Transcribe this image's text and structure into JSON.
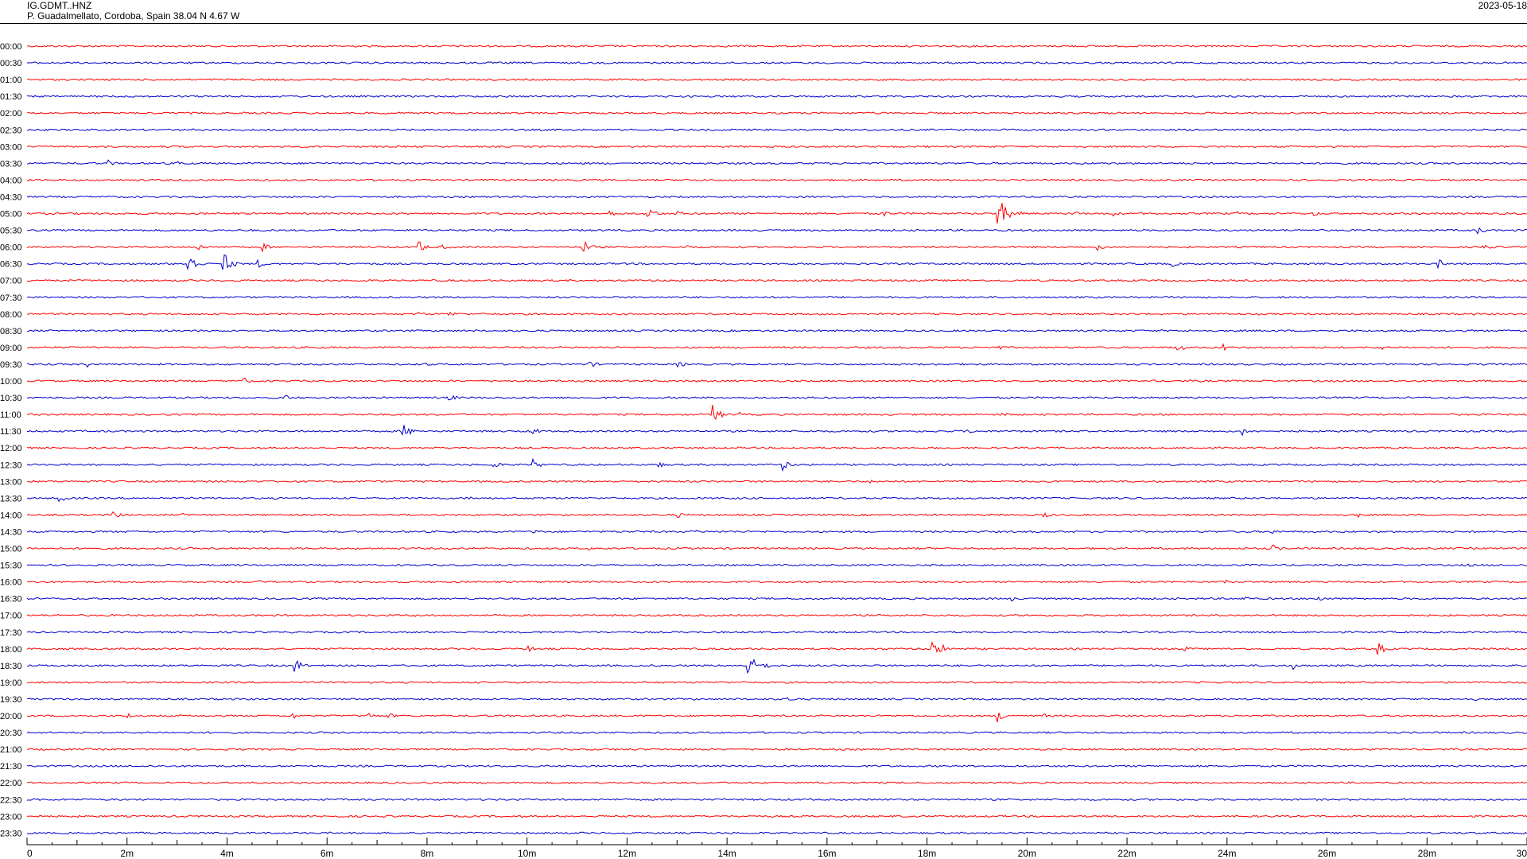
{
  "header": {
    "station_code": "IG.GDMT..HNZ",
    "location": "P. Guadalmellato, Cordoba, Spain  38.04 N 4.67 W",
    "date": "2023-05-18"
  },
  "colors": {
    "trace_a": "#ff0000",
    "trace_b": "#0000cc",
    "axis": "#000000"
  },
  "chart_data": {
    "type": "line",
    "title": "",
    "xlabel": "",
    "ylabel": "",
    "x_unit": "minutes",
    "xlim": [
      0,
      30
    ],
    "x_tick_labels": [
      "0",
      "2m",
      "4m",
      "6m",
      "8m",
      "10m",
      "12m",
      "14m",
      "16m",
      "18m",
      "20m",
      "22m",
      "24m",
      "26m",
      "28m",
      "30"
    ],
    "rows": [
      {
        "label": "00:00",
        "color": "red",
        "events": []
      },
      {
        "label": "00:30",
        "color": "blue",
        "events": []
      },
      {
        "label": "01:00",
        "color": "red",
        "events": []
      },
      {
        "label": "01:30",
        "color": "blue",
        "events": []
      },
      {
        "label": "02:00",
        "color": "red",
        "events": []
      },
      {
        "label": "02:30",
        "color": "blue",
        "events": []
      },
      {
        "label": "03:00",
        "color": "red",
        "events": []
      },
      {
        "label": "03:30",
        "color": "blue",
        "events": [
          [
            1.6,
            5
          ],
          [
            3.0,
            6
          ]
        ]
      },
      {
        "label": "04:00",
        "color": "red",
        "events": []
      },
      {
        "label": "04:30",
        "color": "blue",
        "events": []
      },
      {
        "label": "05:00",
        "color": "red",
        "events": [
          [
            11.6,
            6
          ],
          [
            12.4,
            11
          ],
          [
            13.0,
            4
          ],
          [
            17.1,
            6
          ],
          [
            19.4,
            28
          ],
          [
            19.8,
            4
          ],
          [
            20.9,
            5
          ],
          [
            21.7,
            4
          ],
          [
            24.2,
            3
          ],
          [
            25.7,
            4
          ]
        ]
      },
      {
        "label": "05:30",
        "color": "blue",
        "events": [
          [
            29.0,
            6
          ]
        ]
      },
      {
        "label": "06:00",
        "color": "red",
        "events": [
          [
            3.4,
            6
          ],
          [
            4.7,
            6
          ],
          [
            7.8,
            10
          ],
          [
            8.3,
            4
          ],
          [
            11.1,
            10
          ],
          [
            13.2,
            3
          ],
          [
            21.4,
            5
          ],
          [
            29.1,
            7
          ]
        ]
      },
      {
        "label": "06:30",
        "color": "blue",
        "events": [
          [
            3.2,
            18
          ],
          [
            3.9,
            18
          ],
          [
            4.6,
            6
          ],
          [
            22.9,
            4
          ],
          [
            28.2,
            7
          ]
        ]
      },
      {
        "label": "07:00",
        "color": "red",
        "events": []
      },
      {
        "label": "07:30",
        "color": "blue",
        "events": []
      },
      {
        "label": "08:00",
        "color": "red",
        "events": [
          [
            7.8,
            4
          ],
          [
            8.4,
            6
          ]
        ]
      },
      {
        "label": "08:30",
        "color": "blue",
        "events": []
      },
      {
        "label": "09:00",
        "color": "red",
        "events": [
          [
            19.4,
            4
          ],
          [
            23.0,
            6
          ],
          [
            23.9,
            6
          ],
          [
            27.0,
            6
          ]
        ]
      },
      {
        "label": "09:30",
        "color": "blue",
        "events": [
          [
            1.2,
            4
          ],
          [
            7.9,
            4
          ],
          [
            11.2,
            7
          ],
          [
            13.0,
            5
          ],
          [
            18.2,
            3
          ]
        ]
      },
      {
        "label": "10:00",
        "color": "red",
        "events": [
          [
            4.3,
            6
          ]
        ]
      },
      {
        "label": "10:30",
        "color": "blue",
        "events": [
          [
            5.1,
            6
          ],
          [
            8.4,
            7
          ]
        ]
      },
      {
        "label": "11:00",
        "color": "red",
        "events": [
          [
            13.7,
            14
          ],
          [
            14.2,
            4
          ],
          [
            19.5,
            4
          ]
        ]
      },
      {
        "label": "11:30",
        "color": "blue",
        "events": [
          [
            7.5,
            12
          ],
          [
            10.1,
            6
          ],
          [
            18.8,
            4
          ],
          [
            24.3,
            6
          ]
        ]
      },
      {
        "label": "12:00",
        "color": "red",
        "events": []
      },
      {
        "label": "12:30",
        "color": "blue",
        "events": [
          [
            9.3,
            6
          ],
          [
            10.1,
            8
          ],
          [
            12.6,
            5
          ],
          [
            15.1,
            8
          ]
        ]
      },
      {
        "label": "13:00",
        "color": "red",
        "events": [
          [
            16.8,
            4
          ]
        ]
      },
      {
        "label": "13:30",
        "color": "blue",
        "events": [
          [
            0.6,
            8
          ],
          [
            8.8,
            4
          ]
        ]
      },
      {
        "label": "14:00",
        "color": "red",
        "events": [
          [
            1.7,
            6
          ],
          [
            3.1,
            4
          ],
          [
            13.0,
            4
          ],
          [
            20.3,
            5
          ],
          [
            26.6,
            4
          ]
        ]
      },
      {
        "label": "14:30",
        "color": "blue",
        "events": [
          [
            10.1,
            4
          ],
          [
            13.3,
            5
          ],
          [
            24.9,
            4
          ]
        ]
      },
      {
        "label": "15:00",
        "color": "red",
        "events": [
          [
            11.2,
            3
          ],
          [
            24.9,
            6
          ]
        ]
      },
      {
        "label": "15:30",
        "color": "blue",
        "events": [
          [
            28.8,
            3
          ]
        ]
      },
      {
        "label": "16:00",
        "color": "red",
        "events": [
          [
            4.6,
            3
          ],
          [
            23.9,
            5
          ]
        ]
      },
      {
        "label": "16:30",
        "color": "blue",
        "events": [
          [
            19.6,
            6
          ],
          [
            24.3,
            5
          ],
          [
            25.8,
            5
          ]
        ]
      },
      {
        "label": "17:00",
        "color": "red",
        "events": [
          [
            7.7,
            3
          ]
        ]
      },
      {
        "label": "17:30",
        "color": "blue",
        "events": []
      },
      {
        "label": "18:00",
        "color": "red",
        "events": [
          [
            10.0,
            5
          ],
          [
            18.1,
            12
          ],
          [
            18.3,
            6
          ],
          [
            23.1,
            5
          ],
          [
            27.0,
            10
          ]
        ]
      },
      {
        "label": "18:30",
        "color": "blue",
        "events": [
          [
            5.3,
            14
          ],
          [
            14.4,
            20
          ],
          [
            14.7,
            6
          ],
          [
            25.3,
            6
          ]
        ]
      },
      {
        "label": "19:00",
        "color": "red",
        "events": []
      },
      {
        "label": "19:30",
        "color": "blue",
        "events": [
          [
            15.2,
            4
          ],
          [
            28.9,
            3
          ]
        ]
      },
      {
        "label": "20:00",
        "color": "red",
        "events": [
          [
            2.0,
            4
          ],
          [
            5.3,
            5
          ],
          [
            6.8,
            5
          ],
          [
            7.2,
            5
          ],
          [
            19.4,
            9
          ],
          [
            20.3,
            4
          ]
        ]
      },
      {
        "label": "20:30",
        "color": "blue",
        "events": []
      },
      {
        "label": "21:00",
        "color": "red",
        "events": []
      },
      {
        "label": "21:30",
        "color": "blue",
        "events": []
      },
      {
        "label": "22:00",
        "color": "red",
        "events": []
      },
      {
        "label": "22:30",
        "color": "blue",
        "events": []
      },
      {
        "label": "23:00",
        "color": "red",
        "events": []
      },
      {
        "label": "23:30",
        "color": "blue",
        "events": []
      }
    ]
  }
}
